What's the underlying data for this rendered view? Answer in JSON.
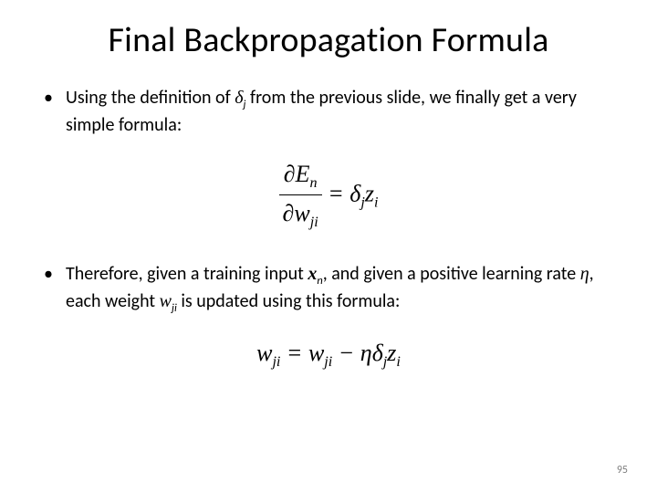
{
  "title": "Final Backpropagation Formula",
  "bullets": {
    "b1a": "Using the definition of ",
    "b1_sym": "δ",
    "b1_sub": "j",
    "b1b": " from the previous slide, we finally get a very simple formula:",
    "b2a": "Therefore, given a training input ",
    "b2_xn_x": "x",
    "b2_xn_n": "n",
    "b2b": ", and given a positive learning rate ",
    "b2_eta": "η",
    "b2c": ", each weight ",
    "b2_w": "w",
    "b2_wji": "ji",
    "b2d": " is updated using this formula:"
  },
  "formula1": {
    "partial1": "∂E",
    "n": "n",
    "partial2": "∂w",
    "ji": "ji",
    "eq": " = ",
    "delta": "δ",
    "j": "j",
    "z": "z",
    "i": "i"
  },
  "formula2": {
    "w1": "w",
    "ji1": "ji",
    "eq1": " = ",
    "w2": "w",
    "ji2": "ji",
    "minus": " − ",
    "eta": "ηδ",
    "j": "j",
    "z": "z",
    "i": "i"
  },
  "pagenum": "95",
  "colors": {
    "text": "#000000",
    "bg": "#ffffff",
    "pagenum": "#7f7f7f"
  }
}
